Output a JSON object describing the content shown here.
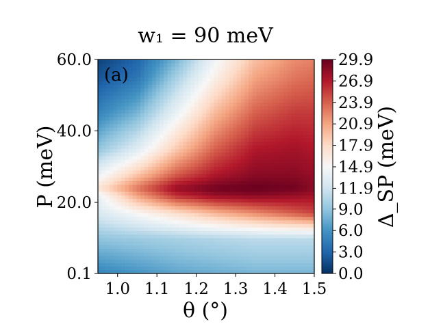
{
  "chart_data": {
    "type": "heatmap",
    "title": "w₁ = 90 meV",
    "panel_label": "(a)",
    "xlabel": "θ (°)",
    "ylabel": "P (meV)",
    "colorbar_label": "Δ_SP (meV)",
    "xlim": [
      0.95,
      1.5
    ],
    "ylim": [
      0.1,
      60.0
    ],
    "zlim": [
      0.0,
      29.9
    ],
    "x_ticks": [
      1.0,
      1.1,
      1.2,
      1.3,
      1.4,
      1.5
    ],
    "x_tick_labels": [
      "1.0",
      "1.1",
      "1.2",
      "1.3",
      "1.4",
      "1.5"
    ],
    "y_ticks": [
      0.1,
      20.0,
      40.0,
      60.0
    ],
    "y_tick_labels": [
      "0.1",
      "20.0",
      "40.0",
      "60.0"
    ],
    "colorbar_ticks": [
      0.0,
      3.0,
      6.0,
      9.0,
      11.9,
      14.9,
      17.9,
      20.9,
      23.9,
      26.9,
      29.9
    ],
    "colorbar_tick_labels": [
      "0.0",
      "3.0",
      "6.0",
      "9.0",
      "11.9",
      "14.9",
      "17.9",
      "20.9",
      "23.9",
      "26.9",
      "29.9"
    ],
    "colormap": "RdBu_r",
    "colormap_stops": [
      "#053061",
      "#2166ac",
      "#4393c3",
      "#92c5de",
      "#d1e5f0",
      "#f7f7f7",
      "#fddbc7",
      "#f4a582",
      "#d6604d",
      "#b2182b",
      "#67001f"
    ],
    "theta": [
      0.95,
      1.05,
      1.15,
      1.25,
      1.35,
      1.45,
      1.5
    ],
    "P": [
      0.1,
      10.0,
      17.0,
      22.0,
      24.0,
      28.0,
      35.0,
      45.0,
      55.0,
      60.0
    ],
    "values": [
      [
        5.0,
        6.0,
        7.0,
        7.5,
        8.0,
        8.0,
        8.0
      ],
      [
        9.0,
        9.5,
        10.0,
        10.5,
        11.0,
        11.0,
        11.0
      ],
      [
        12.5,
        15.0,
        17.5,
        20.0,
        22.0,
        24.0,
        25.0
      ],
      [
        14.0,
        21.0,
        26.0,
        28.0,
        28.5,
        28.0,
        27.5
      ],
      [
        17.0,
        23.0,
        28.0,
        29.5,
        29.9,
        29.5,
        28.5
      ],
      [
        14.0,
        19.0,
        24.0,
        27.0,
        28.5,
        28.5,
        28.0
      ],
      [
        9.0,
        13.0,
        19.0,
        24.0,
        27.0,
        27.5,
        27.0
      ],
      [
        5.0,
        8.0,
        14.0,
        20.0,
        24.0,
        25.5,
        25.5
      ],
      [
        2.0,
        4.0,
        10.0,
        16.0,
        21.0,
        23.0,
        23.5
      ],
      [
        1.0,
        3.0,
        8.0,
        14.5,
        19.5,
        22.0,
        22.5
      ]
    ]
  }
}
